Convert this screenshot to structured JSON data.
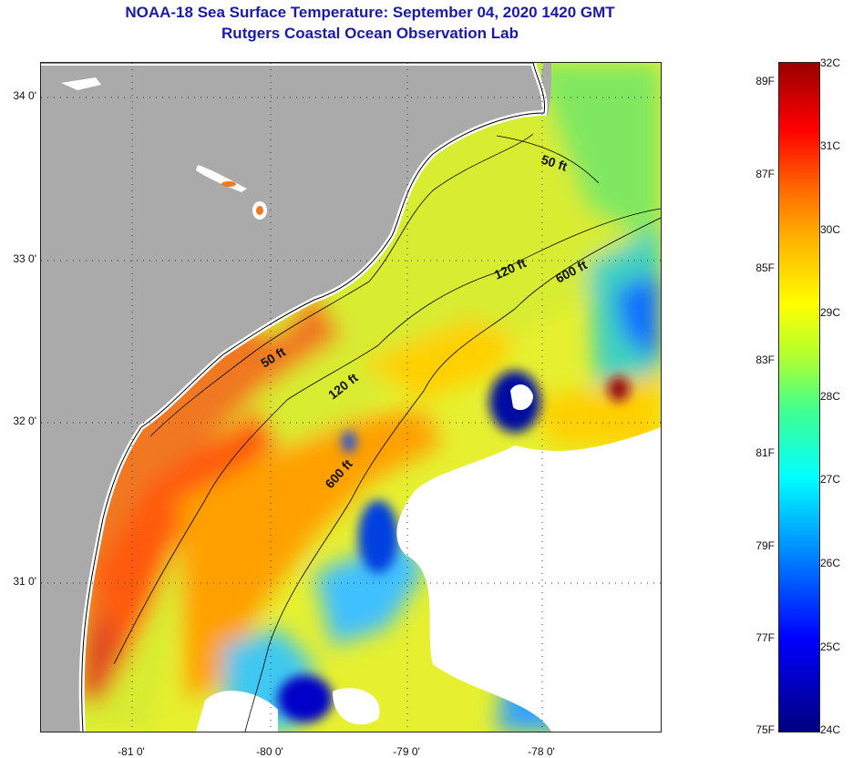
{
  "header": {
    "title_line1": "NOAA-18 Sea Surface Temperature:  September 04, 2020 1420 GMT",
    "title_line2": "Rutgers Coastal Ocean Observation Lab"
  },
  "axes": {
    "latitude_labels": [
      "34 0'",
      "33 0'",
      "32 0'",
      "31 0'"
    ],
    "longitude_labels": [
      "-81 0'",
      "-80 0'",
      "-79 0'",
      "-78 0'"
    ]
  },
  "contours": {
    "label_50_upper": "50 ft",
    "label_50_lower": "50 ft",
    "label_120_upper": "120 ft",
    "label_120_lower": "120 ft",
    "label_600_upper": "600 ft",
    "label_600_lower": "600 ft"
  },
  "colorbar": {
    "fahrenheit_labels": [
      "89F",
      "87F",
      "85F",
      "83F",
      "81F",
      "79F",
      "77F",
      "75F"
    ],
    "celsius_labels": [
      "32C",
      "31C",
      "30C",
      "29C",
      "28C",
      "27C",
      "26C",
      "25C",
      "24C"
    ],
    "scale_colors": [
      "#00007f",
      "#0000ff",
      "#0080ff",
      "#00ffff",
      "#b0ff30",
      "#ffff00",
      "#ff6000",
      "#ff0000",
      "#9a0000"
    ]
  },
  "map_colors": {
    "land": "#aaaaaa",
    "cloud": "#ffffff",
    "warm_shelf": "#f07820",
    "mid_shelf": "#ffc800",
    "offshore": "#c8f040",
    "cool_water": "#40e0e0",
    "cold_water": "#0010a0"
  }
}
